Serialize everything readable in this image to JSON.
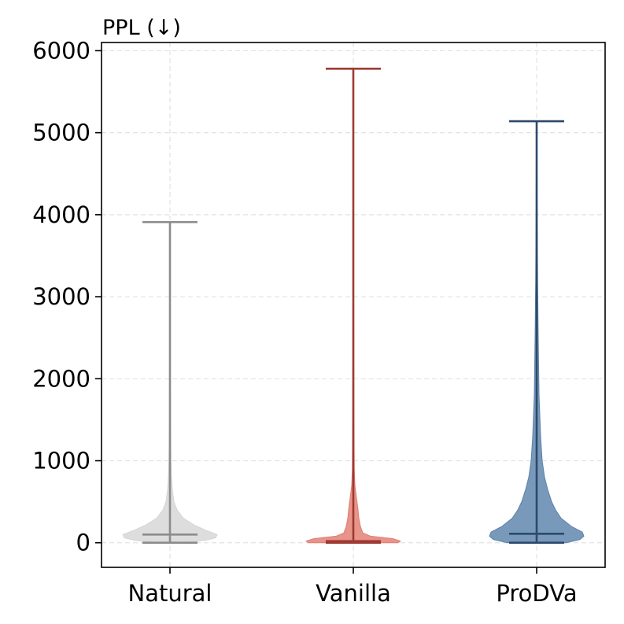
{
  "chart_data": {
    "type": "violin",
    "ylabel": "PPL (↓)",
    "categories": [
      "Natural",
      "Vanilla",
      "ProDVa"
    ],
    "ylim": [
      -300,
      6100
    ],
    "yticks": [
      0,
      1000,
      2000,
      3000,
      4000,
      5000,
      6000
    ],
    "grid": true,
    "series": [
      {
        "name": "Natural",
        "fill": "#d5d5d5",
        "line": "#8c8c8c",
        "min": 0,
        "median": 100,
        "max": 3910,
        "density": [
          [
            0,
            0.17
          ],
          [
            30,
            0.45
          ],
          [
            60,
            0.58
          ],
          [
            100,
            0.6
          ],
          [
            150,
            0.46
          ],
          [
            220,
            0.3
          ],
          [
            300,
            0.17
          ],
          [
            400,
            0.09
          ],
          [
            500,
            0.05
          ],
          [
            650,
            0.03
          ],
          [
            800,
            0.02
          ],
          [
            1000,
            0.013
          ],
          [
            1500,
            0.008
          ],
          [
            2500,
            0.005
          ],
          [
            3200,
            0.003
          ],
          [
            3910,
            0.002
          ]
        ]
      },
      {
        "name": "Vanilla",
        "fill": "#e27d72",
        "line": "#9e3a33",
        "min": 0,
        "median": 20,
        "max": 5780,
        "density": [
          [
            0,
            0.57
          ],
          [
            20,
            0.6
          ],
          [
            50,
            0.5
          ],
          [
            80,
            0.22
          ],
          [
            120,
            0.12
          ],
          [
            200,
            0.09
          ],
          [
            300,
            0.07
          ],
          [
            400,
            0.06
          ],
          [
            550,
            0.04
          ],
          [
            700,
            0.02
          ],
          [
            900,
            0.012
          ],
          [
            1500,
            0.008
          ],
          [
            3000,
            0.005
          ],
          [
            4500,
            0.004
          ],
          [
            5780,
            0.003
          ]
        ]
      },
      {
        "name": "ProDVa",
        "fill": "#5b82ab",
        "line": "#2d4a6a",
        "min": 0,
        "median": 110,
        "max": 5140,
        "density": [
          [
            0,
            0.38
          ],
          [
            40,
            0.55
          ],
          [
            80,
            0.6
          ],
          [
            130,
            0.58
          ],
          [
            200,
            0.44
          ],
          [
            300,
            0.31
          ],
          [
            400,
            0.24
          ],
          [
            500,
            0.19
          ],
          [
            650,
            0.14
          ],
          [
            800,
            0.1
          ],
          [
            1000,
            0.07
          ],
          [
            1300,
            0.05
          ],
          [
            1800,
            0.03
          ],
          [
            2500,
            0.02
          ],
          [
            3200,
            0.012
          ],
          [
            4000,
            0.007
          ],
          [
            5140,
            0.003
          ]
        ]
      }
    ]
  }
}
